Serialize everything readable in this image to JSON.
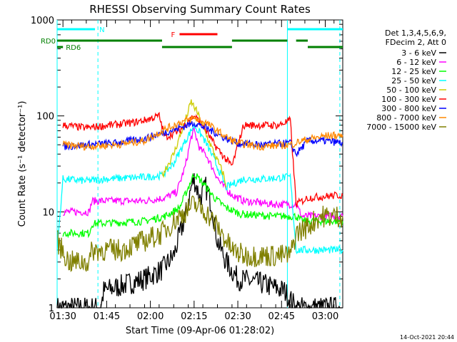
{
  "chart_data": {
    "type": "line",
    "title": "RHESSI Observing Summary Count Rates",
    "xlabel": "Start Time (09-Apr-06 01:28:02)",
    "ylabel": "Count Rate (s⁻¹ detector⁻¹)",
    "yscale": "log",
    "ylim": [
      1,
      1000
    ],
    "xlim_minutes": [
      0,
      98
    ],
    "x_ticks": [
      {
        "t": 2,
        "label": "01:30"
      },
      {
        "t": 17,
        "label": "01:45"
      },
      {
        "t": 32,
        "label": "02:00"
      },
      {
        "t": 47,
        "label": "02:15"
      },
      {
        "t": 62,
        "label": "02:30"
      },
      {
        "t": 77,
        "label": "02:45"
      },
      {
        "t": 92,
        "label": "03:00"
      }
    ],
    "y_ticks": [
      {
        "v": 1,
        "label": "1"
      },
      {
        "v": 10,
        "label": "10"
      },
      {
        "v": 100,
        "label": "100"
      },
      {
        "v": 1000,
        "label": "1000"
      }
    ],
    "legend_header": [
      "Det 1,3,4,5,6,9,",
      "FDecim 2, Att 0"
    ],
    "series": [
      {
        "name": "3 - 6 keV",
        "color": "#000000",
        "points": [
          [
            0,
            1
          ],
          [
            15,
            1
          ],
          [
            16,
            1.5
          ],
          [
            30,
            2
          ],
          [
            36,
            2.5
          ],
          [
            40,
            3.5
          ],
          [
            44,
            9
          ],
          [
            46,
            18
          ],
          [
            47,
            22
          ],
          [
            49,
            14
          ],
          [
            51,
            18
          ],
          [
            53,
            12
          ],
          [
            55,
            5
          ],
          [
            58,
            3
          ],
          [
            62,
            2
          ],
          [
            70,
            1.8
          ],
          [
            78,
            1.5
          ],
          [
            82,
            1
          ],
          [
            98,
            1
          ]
        ]
      },
      {
        "name": "6 - 12 keV",
        "color": "#ff00ff",
        "points": [
          [
            2,
            10
          ],
          [
            11,
            10
          ],
          [
            12,
            13
          ],
          [
            30,
            13
          ],
          [
            37,
            14
          ],
          [
            41,
            16
          ],
          [
            44,
            30
          ],
          [
            46,
            60
          ],
          [
            47,
            70
          ],
          [
            49,
            45
          ],
          [
            51,
            40
          ],
          [
            53,
            30
          ],
          [
            56,
            20
          ],
          [
            60,
            15
          ],
          [
            64,
            13
          ],
          [
            74,
            12
          ],
          [
            82,
            12
          ],
          [
            84,
            9
          ],
          [
            98,
            9
          ]
        ]
      },
      {
        "name": "12 - 25 keV",
        "color": "#00ff00",
        "points": [
          [
            2,
            6
          ],
          [
            11,
            6
          ],
          [
            12,
            7.5
          ],
          [
            30,
            8
          ],
          [
            37,
            9
          ],
          [
            42,
            11
          ],
          [
            45,
            18
          ],
          [
            47,
            25
          ],
          [
            50,
            20
          ],
          [
            54,
            14
          ],
          [
            58,
            11
          ],
          [
            63,
            9.5
          ],
          [
            74,
            9
          ],
          [
            82,
            9
          ],
          [
            84,
            8
          ],
          [
            98,
            8
          ]
        ]
      },
      {
        "name": "25 - 50 keV",
        "color": "#00ffff",
        "points": [
          [
            0,
            4
          ],
          [
            2,
            22
          ],
          [
            10,
            21
          ],
          [
            16,
            22
          ],
          [
            30,
            23
          ],
          [
            36,
            24
          ],
          [
            40,
            32
          ],
          [
            44,
            55
          ],
          [
            47,
            80
          ],
          [
            50,
            60
          ],
          [
            53,
            40
          ],
          [
            56,
            25
          ],
          [
            58,
            18
          ],
          [
            61,
            20
          ],
          [
            64,
            22
          ],
          [
            70,
            22
          ],
          [
            80,
            23
          ],
          [
            82,
            4
          ],
          [
            98,
            4
          ]
        ]
      },
      {
        "name": "50 - 100 keV",
        "color": "#cccc00",
        "points": [
          [
            36,
            24
          ],
          [
            40,
            40
          ],
          [
            44,
            90
          ],
          [
            46,
            140
          ],
          [
            48,
            110
          ],
          [
            51,
            65
          ],
          [
            54,
            40
          ],
          [
            57,
            25
          ],
          [
            58,
            18
          ]
        ]
      },
      {
        "name": "100 - 300 keV",
        "color": "#ff0000",
        "points": [
          [
            2,
            80
          ],
          [
            10,
            75
          ],
          [
            18,
            80
          ],
          [
            26,
            85
          ],
          [
            30,
            90
          ],
          [
            35,
            100
          ],
          [
            37,
            60
          ],
          [
            42,
            70
          ],
          [
            45,
            90
          ],
          [
            47,
            100
          ],
          [
            50,
            80
          ],
          [
            54,
            50
          ],
          [
            58,
            35
          ],
          [
            60,
            30
          ],
          [
            64,
            80
          ],
          [
            70,
            80
          ],
          [
            76,
            80
          ],
          [
            80,
            90
          ],
          [
            82,
            12
          ],
          [
            86,
            14
          ],
          [
            98,
            15
          ]
        ]
      },
      {
        "name": "300 - 800 keV",
        "color": "#0000ff",
        "points": [
          [
            2,
            48
          ],
          [
            10,
            50
          ],
          [
            20,
            52
          ],
          [
            30,
            58
          ],
          [
            36,
            66
          ],
          [
            42,
            75
          ],
          [
            47,
            85
          ],
          [
            51,
            75
          ],
          [
            55,
            65
          ],
          [
            58,
            58
          ],
          [
            62,
            52
          ],
          [
            70,
            50
          ],
          [
            80,
            52
          ],
          [
            82,
            40
          ],
          [
            86,
            55
          ],
          [
            92,
            55
          ],
          [
            98,
            52
          ]
        ]
      },
      {
        "name": "800 - 7000 keV",
        "color": "#ff8800",
        "points": [
          [
            2,
            50
          ],
          [
            10,
            48
          ],
          [
            20,
            50
          ],
          [
            30,
            55
          ],
          [
            36,
            70
          ],
          [
            42,
            85
          ],
          [
            47,
            95
          ],
          [
            51,
            85
          ],
          [
            55,
            70
          ],
          [
            58,
            60
          ],
          [
            62,
            52
          ],
          [
            70,
            48
          ],
          [
            80,
            50
          ],
          [
            84,
            55
          ],
          [
            92,
            62
          ],
          [
            98,
            63
          ]
        ]
      },
      {
        "name": "7000 - 15000 keV",
        "color": "#808000",
        "points": [
          [
            0,
            5
          ],
          [
            4,
            3
          ],
          [
            11,
            3
          ],
          [
            12,
            4
          ],
          [
            22,
            4
          ],
          [
            30,
            5
          ],
          [
            36,
            6
          ],
          [
            42,
            9
          ],
          [
            47,
            12
          ],
          [
            51,
            10
          ],
          [
            55,
            7
          ],
          [
            60,
            4
          ],
          [
            64,
            3.5
          ],
          [
            72,
            3.5
          ],
          [
            80,
            3.5
          ],
          [
            82,
            6
          ],
          [
            86,
            7
          ],
          [
            90,
            9
          ],
          [
            98,
            9
          ]
        ]
      }
    ],
    "status_flags": [
      {
        "name": "N",
        "color": "#00ffff",
        "segments": [
          [
            0,
            13
          ],
          [
            79,
            98
          ]
        ],
        "label": "N"
      },
      {
        "name": "F",
        "color": "#ff0000",
        "segments": [
          [
            42,
            55
          ]
        ],
        "label": "F"
      },
      {
        "name": "RD0",
        "color": "#008000",
        "segments": [
          [
            0,
            36
          ],
          [
            60,
            79
          ],
          [
            82,
            86
          ]
        ],
        "label": "RD0"
      },
      {
        "name": "RD6",
        "color": "#008000",
        "segments": [
          [
            0,
            2
          ],
          [
            36,
            60
          ],
          [
            86,
            98
          ]
        ],
        "label": "RD6"
      }
    ],
    "markers": [
      {
        "t": 0,
        "color": "#00ffff",
        "style": "solid"
      },
      {
        "t": 14,
        "color": "#00ffff",
        "style": "dashed"
      },
      {
        "t": 79,
        "color": "#00ffff",
        "style": "solid"
      },
      {
        "t": 97,
        "color": "#00ffff",
        "style": "dashed"
      }
    ]
  },
  "timestamp": "14-Oct-2021 20:44"
}
